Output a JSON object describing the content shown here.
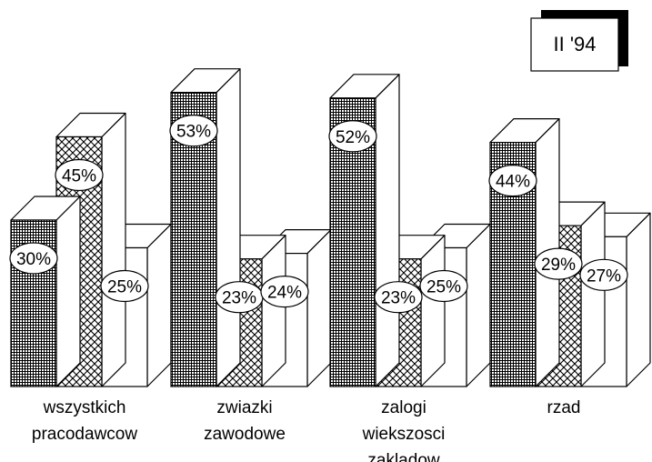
{
  "chart_data": {
    "type": "bar",
    "style": "3d-clustered",
    "legend_box_label": "II '94",
    "categories": [
      [
        "wszystkich",
        "pracodawcow"
      ],
      [
        "zwiazki",
        "zawodowe"
      ],
      [
        "zalogi",
        "wiekszosci",
        "zakladow"
      ],
      [
        "rzad"
      ]
    ],
    "series": [
      {
        "pattern": "fine-grid",
        "values": [
          30,
          53,
          52,
          44
        ]
      },
      {
        "pattern": "crosshatch",
        "values": [
          45,
          23,
          23,
          29
        ]
      },
      {
        "pattern": "white",
        "values": [
          25,
          24,
          25,
          27
        ]
      }
    ],
    "value_labels": [
      [
        "30%",
        "45%",
        "25%"
      ],
      [
        "53%",
        "23%",
        "24%"
      ],
      [
        "52%",
        "23%",
        "25%"
      ],
      [
        "44%",
        "29%",
        "27%"
      ]
    ],
    "ylim": [
      0,
      55
    ],
    "grid": false,
    "legend_position": "top-right"
  }
}
